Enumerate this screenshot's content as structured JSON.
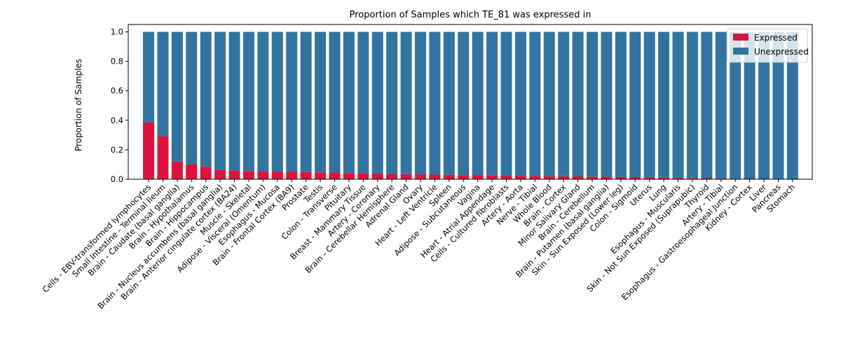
{
  "chart_data": {
    "type": "bar",
    "stacked": true,
    "title": "Proportion of Samples which TE_81 was expressed in",
    "xlabel": "",
    "ylabel": "Proportion of Samples",
    "ylim": [
      0,
      1.05
    ],
    "yticks": [
      "0.0",
      "0.2",
      "0.4",
      "0.6",
      "0.8",
      "1.0"
    ],
    "grid": false,
    "legend_position": "top-right",
    "categories": [
      "Cells - EBV-transformed lymphocytes",
      "Small Intestine - Terminal Ileum",
      "Brain - Caudate (basal ganglia)",
      "Brain - Hypothalamus",
      "Brain - Hippocampus",
      "Brain - Nucleus accumbens (basal ganglia)",
      "Brain - Anterior cingulate cortex (BA24)",
      "Muscle - Skeletal",
      "Adipose - Visceral (Omentum)",
      "Esophagus - Mucosa",
      "Brain - Frontal Cortex (BA9)",
      "Prostate",
      "Testis",
      "Colon - Transverse",
      "Pituitary",
      "Breast - Mammary Tissue",
      "Artery - Coronary",
      "Brain - Cerebellar Hemisphere",
      "Adrenal Gland",
      "Ovary",
      "Heart - Left Ventricle",
      "Spleen",
      "Adipose - Subcutaneous",
      "Vagina",
      "Heart - Atrial Appendage",
      "Cells - Cultured fibroblasts",
      "Artery - Aorta",
      "Nerve - Tibial",
      "Whole Blood",
      "Brain - Cortex",
      "Minor Salivary Gland",
      "Brain - Cerebellum",
      "Brain - Putamen (basal ganglia)",
      "Skin - Sun Exposed (Lower leg)",
      "Colon - Sigmoid",
      "Uterus",
      "Lung",
      "Esophagus - Muscularis",
      "Skin - Not Sun Exposed (Suprapubic)",
      "Thyroid",
      "Artery - Tibial",
      "Esophagus - Gastroesophageal Junction",
      "Kidney - Cortex",
      "Liver",
      "Pancreas",
      "Stomach"
    ],
    "series": [
      {
        "name": "Expressed",
        "color": "#dc143c",
        "values": [
          0.385,
          0.29,
          0.12,
          0.1,
          0.085,
          0.062,
          0.058,
          0.056,
          0.052,
          0.052,
          0.05,
          0.048,
          0.046,
          0.045,
          0.042,
          0.04,
          0.038,
          0.036,
          0.034,
          0.033,
          0.031,
          0.03,
          0.028,
          0.026,
          0.025,
          0.024,
          0.023,
          0.022,
          0.021,
          0.02,
          0.019,
          0.018,
          0.017,
          0.015,
          0.014,
          0.012,
          0.011,
          0.009,
          0.008,
          0.007,
          0.005,
          0.003,
          0.002,
          0.0,
          0.0,
          0.0
        ]
      },
      {
        "name": "Unexpressed",
        "color": "#3274a1",
        "values": [
          0.615,
          0.71,
          0.88,
          0.9,
          0.915,
          0.938,
          0.942,
          0.944,
          0.948,
          0.948,
          0.95,
          0.952,
          0.954,
          0.955,
          0.958,
          0.96,
          0.962,
          0.964,
          0.966,
          0.967,
          0.969,
          0.97,
          0.972,
          0.974,
          0.975,
          0.976,
          0.977,
          0.978,
          0.979,
          0.98,
          0.981,
          0.982,
          0.983,
          0.985,
          0.986,
          0.988,
          0.989,
          0.991,
          0.992,
          0.993,
          0.995,
          0.997,
          0.998,
          1.0,
          1.0,
          1.0
        ]
      }
    ]
  }
}
